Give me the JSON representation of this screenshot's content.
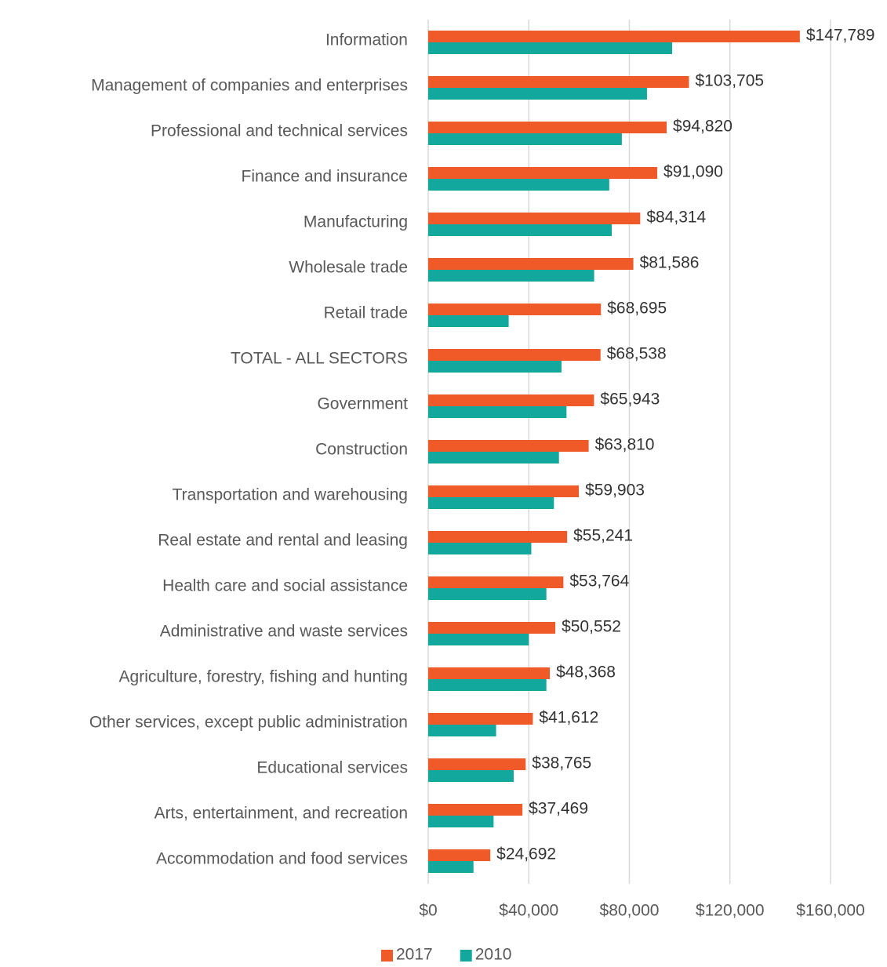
{
  "chart_data": {
    "type": "bar",
    "categories": [
      "Information",
      "Management of companies and enterprises",
      "Professional and technical services",
      "Finance and insurance",
      "Manufacturing",
      "Wholesale trade",
      "Retail trade",
      "TOTAL - ALL SECTORS",
      "Government",
      "Construction",
      "Transportation and warehousing",
      "Real estate and rental and leasing",
      "Health care and social assistance",
      "Administrative and waste services",
      "Agriculture, forestry, fishing and hunting",
      "Other services, except public administration",
      "Educational services",
      "Arts, entertainment, and recreation",
      "Accommodation and food services"
    ],
    "series": [
      {
        "name": "2017",
        "color": "#f05a28",
        "values": [
          147789,
          103705,
          94820,
          91090,
          84314,
          81586,
          68695,
          68538,
          65943,
          63810,
          59903,
          55241,
          53764,
          50552,
          48368,
          41612,
          38765,
          37469,
          24692
        ],
        "value_labels": [
          "$147,789",
          "$103,705",
          "$94,820",
          "$91,090",
          "$84,314",
          "$81,586",
          "$68,695",
          "$68,538",
          "$65,943",
          "$63,810",
          "$59,903",
          "$55,241",
          "$53,764",
          "$50,552",
          "$48,368",
          "$41,612",
          "$38,765",
          "$37,469",
          "$24,692"
        ]
      },
      {
        "name": "2010",
        "color": "#12a89d",
        "values": [
          97000,
          87000,
          77000,
          72000,
          73000,
          66000,
          32000,
          53000,
          55000,
          52000,
          50000,
          41000,
          47000,
          40000,
          47000,
          27000,
          34000,
          26000,
          18000
        ]
      }
    ],
    "xlim": [
      0,
      160000
    ],
    "xticks": [
      {
        "value": 0,
        "label": "$0"
      },
      {
        "value": 40000,
        "label": "$40,000"
      },
      {
        "value": 80000,
        "label": "$80,000"
      },
      {
        "value": 120000,
        "label": "$120,000"
      },
      {
        "value": 160000,
        "label": "$160,000"
      }
    ],
    "grid": true,
    "legend": "bottom"
  }
}
